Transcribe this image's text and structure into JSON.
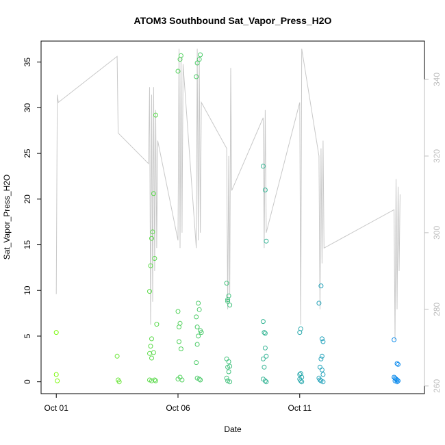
{
  "chart_data": {
    "type": "scatter",
    "title": "ATOM3 Southbound Sat_Vapor_Press_H2O",
    "xlabel": "Date",
    "ylabel": "Sat_Vapor_Press_H2O",
    "xlim": [
      "2016-09-30T09:00",
      "2016-10-16T03:00"
    ],
    "ylim": [
      -1.3,
      37.3
    ],
    "xticks": [
      {
        "label": "Oct 01",
        "value": "2016-10-01"
      },
      {
        "label": "Oct 06",
        "value": "2016-10-06"
      },
      {
        "label": "Oct 11",
        "value": "2016-10-11"
      }
    ],
    "yticks": [
      0,
      5,
      10,
      15,
      20,
      25,
      30,
      35
    ],
    "y2lim": [
      258,
      350
    ],
    "y2ticks": [
      260,
      280,
      300,
      320,
      340
    ],
    "grid": false,
    "legend": "none",
    "colors": {
      "trace": "#c8c8c8",
      "right_axis": "#bdbdbd",
      "gradient_start": "#80ff00",
      "gradient_end": "#0080ff"
    },
    "series": [
      {
        "role": "points",
        "marker": "open-circle",
        "points": [
          [
            "2016-10-01T00:00",
            5.4
          ],
          [
            "2016-10-01T00:00",
            0.8
          ],
          [
            "2016-10-01T01:00",
            0.1
          ],
          [
            "2016-10-03T12:00",
            2.8
          ],
          [
            "2016-10-03T13:00",
            0.2
          ],
          [
            "2016-10-03T14:00",
            0.0
          ],
          [
            "2016-10-04T20:00",
            9.9
          ],
          [
            "2016-10-04T21:00",
            12.7
          ],
          [
            "2016-10-04T22:00",
            15.7
          ],
          [
            "2016-10-04T23:00",
            16.4
          ],
          [
            "2016-10-05T00:00",
            20.6
          ],
          [
            "2016-10-05T01:00",
            13.5
          ],
          [
            "2016-10-05T02:00",
            29.2
          ],
          [
            "2016-10-05T03:00",
            6.3
          ],
          [
            "2016-10-04T22:00",
            4.7
          ],
          [
            "2016-10-04T21:00",
            3.9
          ],
          [
            "2016-10-04T20:00",
            3.1
          ],
          [
            "2016-10-04T22:00",
            2.6
          ],
          [
            "2016-10-05T00:00",
            3.2
          ],
          [
            "2016-10-04T20:00",
            0.2
          ],
          [
            "2016-10-04T22:00",
            0.1
          ],
          [
            "2016-10-05T01:00",
            0.2
          ],
          [
            "2016-10-05T02:00",
            0.1
          ],
          [
            "2016-10-06T00:00",
            34.0
          ],
          [
            "2016-10-06T02:00",
            35.3
          ],
          [
            "2016-10-06T03:00",
            35.7
          ],
          [
            "2016-10-06T00:00",
            7.7
          ],
          [
            "2016-10-06T01:00",
            6.0
          ],
          [
            "2016-10-06T02:00",
            6.4
          ],
          [
            "2016-10-06T01:00",
            4.4
          ],
          [
            "2016-10-06T03:00",
            3.6
          ],
          [
            "2016-10-06T00:00",
            0.3
          ],
          [
            "2016-10-06T02:00",
            0.5
          ],
          [
            "2016-10-06T04:00",
            0.2
          ],
          [
            "2016-10-06T21:00",
            35.3
          ],
          [
            "2016-10-06T22:00",
            35.8
          ],
          [
            "2016-10-06T19:00",
            34.9
          ],
          [
            "2016-10-06T18:00",
            33.4
          ],
          [
            "2016-10-06T20:00",
            8.6
          ],
          [
            "2016-10-06T21:00",
            7.9
          ],
          [
            "2016-10-06T18:00",
            7.1
          ],
          [
            "2016-10-06T19:00",
            6.0
          ],
          [
            "2016-10-06T22:00",
            5.6
          ],
          [
            "2016-10-06T23:00",
            5.4
          ],
          [
            "2016-10-06T20:00",
            5.0
          ],
          [
            "2016-10-06T19:00",
            4.1
          ],
          [
            "2016-10-06T18:00",
            2.1
          ],
          [
            "2016-10-06T19:00",
            0.4
          ],
          [
            "2016-10-06T21:00",
            0.3
          ],
          [
            "2016-10-06T22:00",
            0.2
          ],
          [
            "2016-10-08T00:00",
            10.8
          ],
          [
            "2016-10-08T02:00",
            9.4
          ],
          [
            "2016-10-08T01:00",
            8.8
          ],
          [
            "2016-10-08T03:00",
            8.4
          ],
          [
            "2016-10-08T01:00",
            9.0
          ],
          [
            "2016-10-08T00:00",
            2.5
          ],
          [
            "2016-10-08T02:00",
            2.2
          ],
          [
            "2016-10-08T01:00",
            1.6
          ],
          [
            "2016-10-08T03:00",
            1.7
          ],
          [
            "2016-10-08T02:00",
            1.1
          ],
          [
            "2016-10-08T00:00",
            0.4
          ],
          [
            "2016-10-08T01:00",
            0.1
          ],
          [
            "2016-10-08T03:00",
            0.0
          ],
          [
            "2016-10-09T12:00",
            23.6
          ],
          [
            "2016-10-09T14:00",
            21.0
          ],
          [
            "2016-10-09T15:00",
            15.4
          ],
          [
            "2016-10-09T12:00",
            6.6
          ],
          [
            "2016-10-09T13:00",
            5.4
          ],
          [
            "2016-10-09T14:00",
            5.3
          ],
          [
            "2016-10-09T15:00",
            2.8
          ],
          [
            "2016-10-09T12:00",
            2.5
          ],
          [
            "2016-10-09T14:00",
            3.7
          ],
          [
            "2016-10-09T13:00",
            1.6
          ],
          [
            "2016-10-09T12:00",
            0.3
          ],
          [
            "2016-10-09T14:00",
            0.1
          ],
          [
            "2016-10-09T15:00",
            0.0
          ],
          [
            "2016-10-11T00:00",
            5.4
          ],
          [
            "2016-10-11T01:00",
            5.8
          ],
          [
            "2016-10-11T00:00",
            0.8
          ],
          [
            "2016-10-11T01:00",
            0.9
          ],
          [
            "2016-10-11T02:00",
            0.5
          ],
          [
            "2016-10-11T00:00",
            0.3
          ],
          [
            "2016-10-11T01:00",
            0.1
          ],
          [
            "2016-10-11T02:00",
            0.0
          ],
          [
            "2016-10-11T19:00",
            8.6
          ],
          [
            "2016-10-11T21:00",
            10.5
          ],
          [
            "2016-10-11T22:00",
            4.7
          ],
          [
            "2016-10-11T23:00",
            4.4
          ],
          [
            "2016-10-11T22:00",
            2.8
          ],
          [
            "2016-10-11T21:00",
            2.5
          ],
          [
            "2016-10-11T20:00",
            1.6
          ],
          [
            "2016-10-11T22:00",
            1.3
          ],
          [
            "2016-10-11T23:00",
            0.8
          ],
          [
            "2016-10-11T19:00",
            0.4
          ],
          [
            "2016-10-11T20:00",
            0.2
          ],
          [
            "2016-10-11T21:00",
            0.1
          ],
          [
            "2016-10-11T23:00",
            0.0
          ],
          [
            "2016-10-14T21:00",
            4.6
          ],
          [
            "2016-10-15T00:00",
            2.0
          ],
          [
            "2016-10-15T01:00",
            1.9
          ],
          [
            "2016-10-14T21:00",
            0.5
          ],
          [
            "2016-10-14T22:00",
            0.4
          ],
          [
            "2016-10-14T23:00",
            0.3
          ],
          [
            "2016-10-15T00:00",
            0.2
          ],
          [
            "2016-10-15T01:00",
            0.1
          ],
          [
            "2016-10-14T22:00",
            0.1
          ],
          [
            "2016-10-15T00:00",
            0.0
          ]
        ]
      },
      {
        "role": "trace",
        "axis": "right",
        "points": [
          [
            "2016-10-01T00:00",
            284
          ],
          [
            "2016-10-01T01:00",
            336
          ],
          [
            "2016-10-01T02:00",
            334
          ],
          [
            "2016-10-03T12:00",
            346
          ],
          [
            "2016-10-03T13:00",
            326
          ],
          [
            "2016-10-04T19:00",
            318
          ],
          [
            "2016-10-04T20:00",
            338
          ],
          [
            "2016-10-04T21:00",
            276
          ],
          [
            "2016-10-04T22:00",
            336
          ],
          [
            "2016-10-04T23:00",
            282
          ],
          [
            "2016-10-05T00:00",
            338
          ],
          [
            "2016-10-05T01:00",
            290
          ],
          [
            "2016-10-05T02:00",
            332
          ],
          [
            "2016-10-05T03:00",
            296
          ],
          [
            "2016-10-05T04:00",
            324
          ],
          [
            "2016-10-06T00:00",
            298
          ],
          [
            "2016-10-06T01:00",
            348
          ],
          [
            "2016-10-06T02:00",
            296
          ],
          [
            "2016-10-06T03:00",
            346
          ],
          [
            "2016-10-06T04:00",
            300
          ],
          [
            "2016-10-06T05:00",
            344
          ],
          [
            "2016-10-06T18:00",
            296
          ],
          [
            "2016-10-06T19:00",
            348
          ],
          [
            "2016-10-06T20:00",
            298
          ],
          [
            "2016-10-06T21:00",
            346
          ],
          [
            "2016-10-06T22:00",
            300
          ],
          [
            "2016-10-06T23:00",
            334
          ],
          [
            "2016-10-08T00:00",
            322
          ],
          [
            "2016-10-08T01:00",
            280
          ],
          [
            "2016-10-08T02:00",
            320
          ],
          [
            "2016-10-08T03:00",
            284
          ],
          [
            "2016-10-08T04:00",
            343
          ],
          [
            "2016-10-08T05:00",
            311
          ],
          [
            "2016-10-09T12:00",
            330
          ],
          [
            "2016-10-09T13:00",
            296
          ],
          [
            "2016-10-09T14:00",
            332
          ],
          [
            "2016-10-09T15:00",
            300
          ],
          [
            "2016-10-11T00:00",
            334
          ],
          [
            "2016-10-11T01:00",
            276
          ],
          [
            "2016-10-11T02:00",
            348
          ],
          [
            "2016-10-11T19:00",
            320
          ],
          [
            "2016-10-11T20:00",
            280
          ],
          [
            "2016-10-11T21:00",
            322
          ],
          [
            "2016-10-11T22:00",
            292
          ],
          [
            "2016-10-11T23:00",
            324
          ],
          [
            "2016-10-12T00:00",
            296
          ],
          [
            "2016-10-14T21:00",
            306
          ],
          [
            "2016-10-14T22:00",
            272
          ],
          [
            "2016-10-14T23:00",
            314
          ],
          [
            "2016-10-15T00:00",
            280
          ],
          [
            "2016-10-15T01:00",
            312
          ],
          [
            "2016-10-15T02:00",
            290
          ],
          [
            "2016-10-15T03:00",
            310
          ]
        ]
      }
    ]
  }
}
